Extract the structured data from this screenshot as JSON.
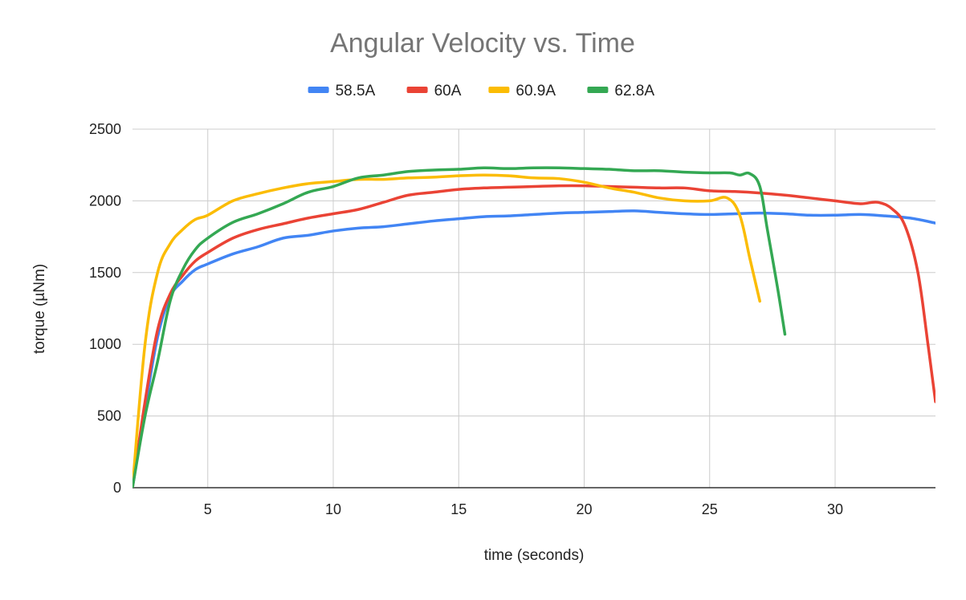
{
  "chart_data": {
    "type": "line",
    "title": "Angular Velocity vs. Time",
    "xlabel": "time (seconds)",
    "ylabel": "torque (µNm)",
    "xlim": [
      2,
      34
    ],
    "ylim": [
      0,
      2500
    ],
    "x_ticks": [
      5,
      10,
      15,
      20,
      25,
      30
    ],
    "y_ticks": [
      0,
      500,
      1000,
      1500,
      2000,
      2500
    ],
    "grid": true,
    "legend_position": "top",
    "series": [
      {
        "name": "58.5A",
        "color": "#4285F4",
        "points": [
          [
            2,
            0
          ],
          [
            2.5,
            550
          ],
          [
            3,
            1050
          ],
          [
            3.5,
            1330
          ],
          [
            4,
            1440
          ],
          [
            4.5,
            1520
          ],
          [
            5,
            1560
          ],
          [
            6,
            1630
          ],
          [
            7,
            1680
          ],
          [
            8,
            1740
          ],
          [
            9,
            1760
          ],
          [
            10,
            1790
          ],
          [
            11,
            1810
          ],
          [
            12,
            1820
          ],
          [
            13,
            1840
          ],
          [
            14,
            1860
          ],
          [
            15,
            1875
          ],
          [
            16,
            1890
          ],
          [
            17,
            1895
          ],
          [
            18,
            1905
          ],
          [
            19,
            1915
          ],
          [
            20,
            1920
          ],
          [
            21,
            1925
          ],
          [
            22,
            1930
          ],
          [
            23,
            1920
          ],
          [
            24,
            1910
          ],
          [
            25,
            1905
          ],
          [
            26,
            1910
          ],
          [
            27,
            1915
          ],
          [
            28,
            1910
          ],
          [
            29,
            1900
          ],
          [
            30,
            1900
          ],
          [
            31,
            1905
          ],
          [
            32,
            1895
          ],
          [
            33,
            1880
          ],
          [
            34,
            1845
          ]
        ]
      },
      {
        "name": "60A",
        "color": "#EA4335",
        "points": [
          [
            2,
            0
          ],
          [
            2.5,
            600
          ],
          [
            3,
            1100
          ],
          [
            3.5,
            1350
          ],
          [
            4,
            1480
          ],
          [
            4.5,
            1580
          ],
          [
            5,
            1640
          ],
          [
            6,
            1740
          ],
          [
            7,
            1800
          ],
          [
            8,
            1840
          ],
          [
            9,
            1880
          ],
          [
            10,
            1910
          ],
          [
            11,
            1940
          ],
          [
            12,
            1990
          ],
          [
            13,
            2040
          ],
          [
            14,
            2060
          ],
          [
            15,
            2080
          ],
          [
            16,
            2090
          ],
          [
            17,
            2095
          ],
          [
            18,
            2100
          ],
          [
            19,
            2105
          ],
          [
            20,
            2105
          ],
          [
            21,
            2100
          ],
          [
            22,
            2095
          ],
          [
            23,
            2090
          ],
          [
            24,
            2090
          ],
          [
            25,
            2070
          ],
          [
            26,
            2065
          ],
          [
            27,
            2055
          ],
          [
            28,
            2040
          ],
          [
            29,
            2020
          ],
          [
            30,
            2000
          ],
          [
            31,
            1980
          ],
          [
            31.7,
            1990
          ],
          [
            32.3,
            1940
          ],
          [
            32.8,
            1820
          ],
          [
            33.3,
            1500
          ],
          [
            33.7,
            1000
          ],
          [
            34,
            600
          ]
        ]
      },
      {
        "name": "60.9A",
        "color": "#FBBC04",
        "points": [
          [
            2,
            0
          ],
          [
            2.5,
            1000
          ],
          [
            3,
            1500
          ],
          [
            3.5,
            1700
          ],
          [
            4,
            1800
          ],
          [
            4.5,
            1870
          ],
          [
            5,
            1900
          ],
          [
            6,
            2000
          ],
          [
            7,
            2050
          ],
          [
            8,
            2090
          ],
          [
            9,
            2120
          ],
          [
            10,
            2135
          ],
          [
            11,
            2150
          ],
          [
            12,
            2150
          ],
          [
            13,
            2160
          ],
          [
            14,
            2165
          ],
          [
            15,
            2175
          ],
          [
            16,
            2180
          ],
          [
            17,
            2175
          ],
          [
            18,
            2160
          ],
          [
            19,
            2155
          ],
          [
            20,
            2130
          ],
          [
            21,
            2090
          ],
          [
            22,
            2060
          ],
          [
            23,
            2020
          ],
          [
            24,
            2000
          ],
          [
            25,
            2000
          ],
          [
            25.7,
            2020
          ],
          [
            26.2,
            1900
          ],
          [
            26.6,
            1600
          ],
          [
            27,
            1300
          ]
        ]
      },
      {
        "name": "62.8A",
        "color": "#34A853",
        "points": [
          [
            2,
            0
          ],
          [
            2.5,
            500
          ],
          [
            3,
            880
          ],
          [
            3.5,
            1300
          ],
          [
            4,
            1520
          ],
          [
            4.5,
            1660
          ],
          [
            5,
            1740
          ],
          [
            6,
            1850
          ],
          [
            7,
            1910
          ],
          [
            8,
            1980
          ],
          [
            9,
            2060
          ],
          [
            10,
            2100
          ],
          [
            11,
            2160
          ],
          [
            12,
            2180
          ],
          [
            13,
            2205
          ],
          [
            14,
            2215
          ],
          [
            15,
            2220
          ],
          [
            16,
            2230
          ],
          [
            17,
            2225
          ],
          [
            18,
            2230
          ],
          [
            19,
            2230
          ],
          [
            20,
            2225
          ],
          [
            21,
            2220
          ],
          [
            22,
            2210
          ],
          [
            23,
            2210
          ],
          [
            24,
            2200
          ],
          [
            25,
            2195
          ],
          [
            25.8,
            2195
          ],
          [
            26.2,
            2180
          ],
          [
            26.6,
            2190
          ],
          [
            27,
            2100
          ],
          [
            27.3,
            1800
          ],
          [
            27.7,
            1400
          ],
          [
            28,
            1070
          ]
        ]
      }
    ]
  }
}
